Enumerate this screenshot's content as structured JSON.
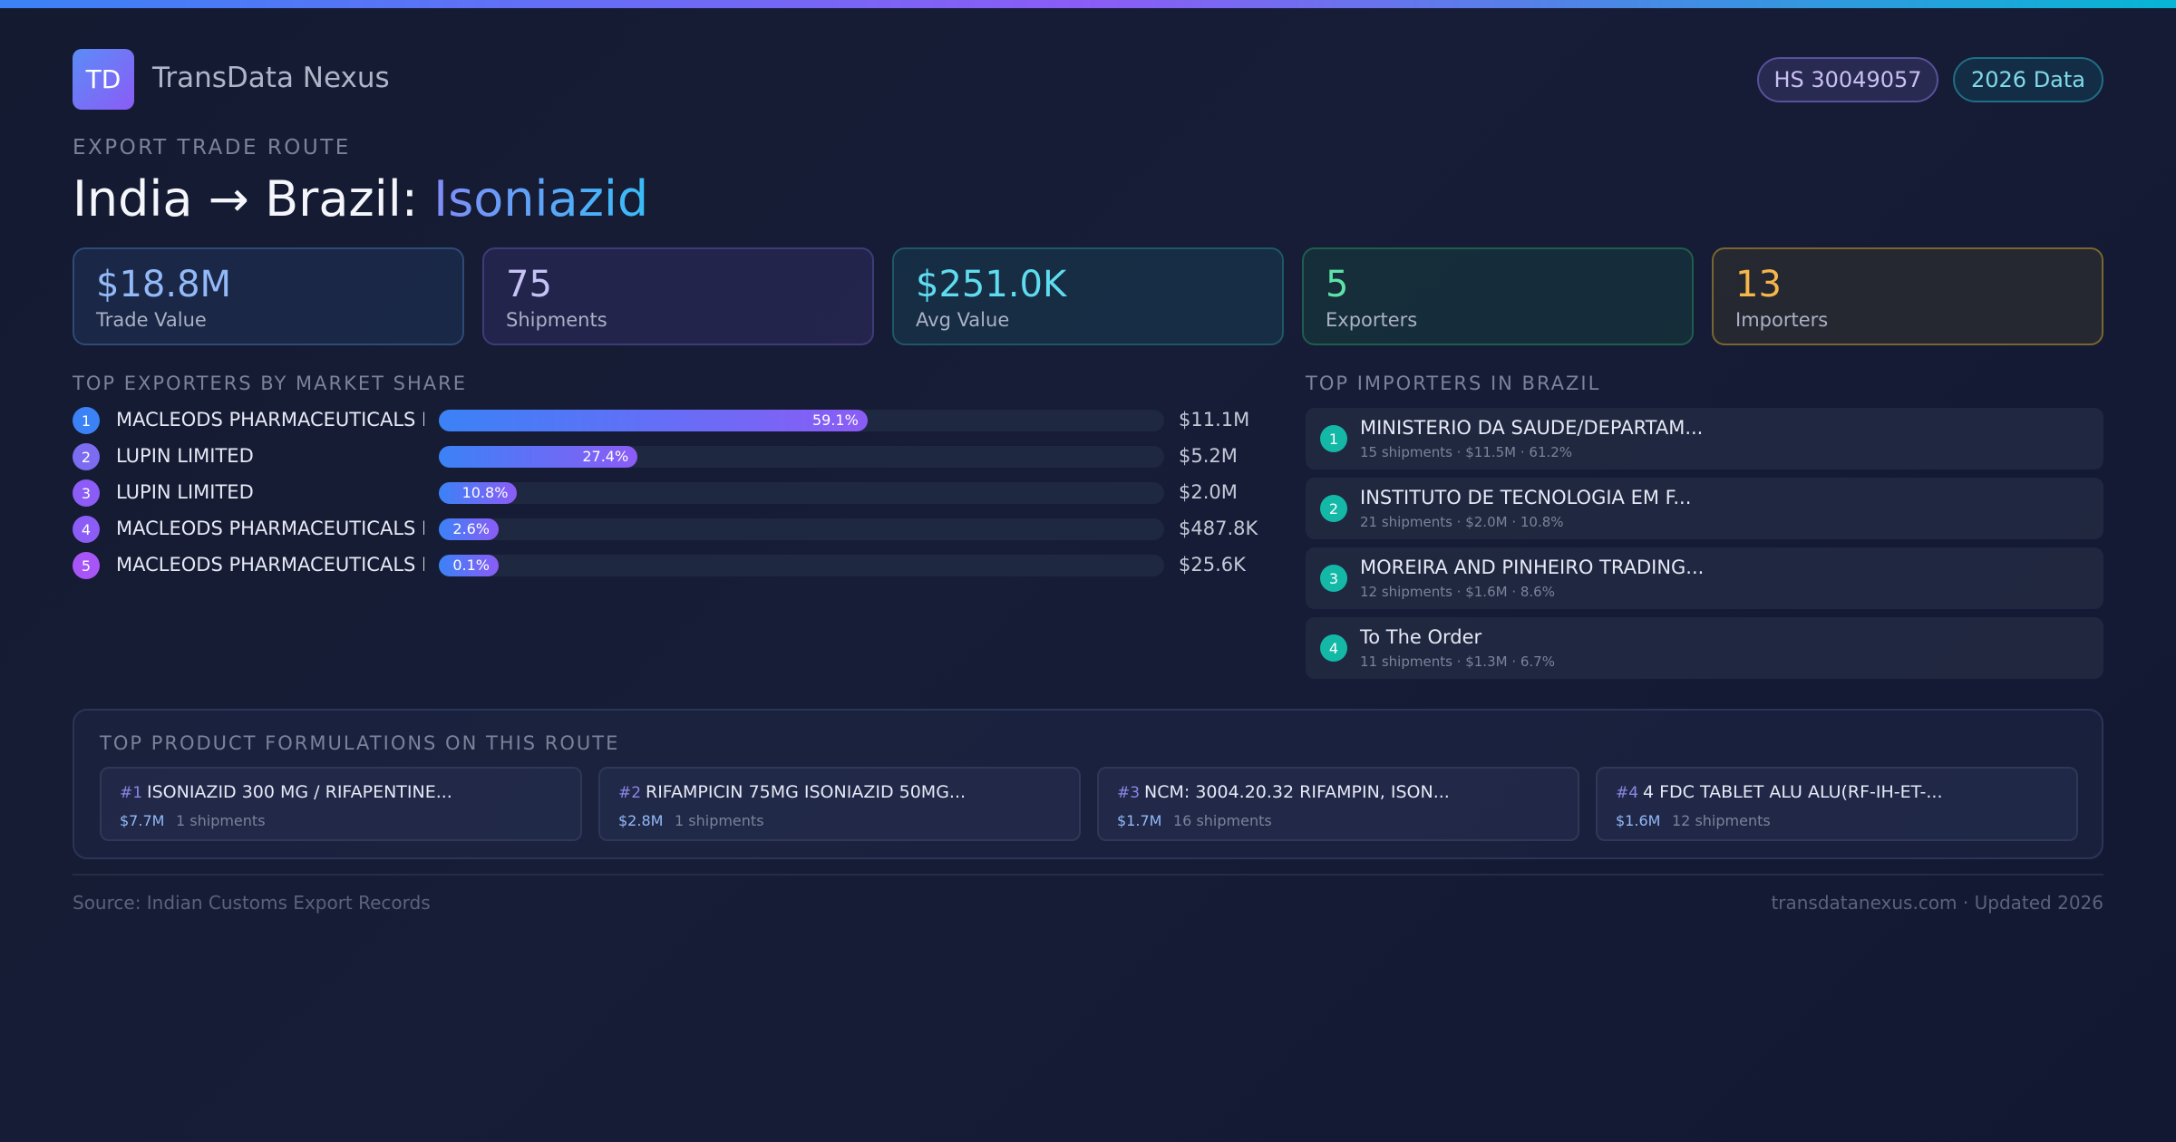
{
  "brand": {
    "logo_text": "TD",
    "name": "TransData Nexus"
  },
  "badges": {
    "hs_code": "HS 30049057",
    "year": "2026 Data"
  },
  "route": {
    "eyebrow": "EXPORT TRADE ROUTE",
    "title_prefix": "India → Brazil: ",
    "product": "Isoniazid"
  },
  "stats": [
    {
      "value": "$18.8M",
      "label": "Trade Value"
    },
    {
      "value": "75",
      "label": "Shipments"
    },
    {
      "value": "$251.0K",
      "label": "Avg Value"
    },
    {
      "value": "5",
      "label": "Exporters"
    },
    {
      "value": "13",
      "label": "Importers"
    }
  ],
  "exporters": {
    "heading": "TOP EXPORTERS BY MARKET SHARE",
    "items": [
      {
        "rank": "1",
        "name": "MACLEODS PHARMACEUTICALS LTD",
        "share": 59.1,
        "share_label": "59.1%",
        "value": "$11.1M",
        "color": "#3b82f6"
      },
      {
        "rank": "2",
        "name": "LUPIN LIMITED",
        "share": 27.4,
        "share_label": "27.4%",
        "value": "$5.2M",
        "color": "#7c6cf0"
      },
      {
        "rank": "3",
        "name": "LUPIN LIMITED",
        "share": 10.8,
        "share_label": "10.8%",
        "value": "$2.0M",
        "color": "#8b5cf6"
      },
      {
        "rank": "4",
        "name": "MACLEODS PHARMACEUTICALS L...",
        "share": 2.6,
        "share_label": "2.6%",
        "value": "$487.8K",
        "color": "#8b5cf6"
      },
      {
        "rank": "5",
        "name": "MACLEODS PHARMACEUTICALS L...",
        "share": 0.1,
        "share_label": "0.1%",
        "value": "$25.6K",
        "color": "#a855f7"
      }
    ]
  },
  "importers": {
    "heading": "TOP IMPORTERS IN BRAZIL",
    "items": [
      {
        "rank": "1",
        "name": "MINISTERIO DA SAUDE/DEPARTAM...",
        "meta": "15 shipments · $11.5M · 61.2%"
      },
      {
        "rank": "2",
        "name": "INSTITUTO DE TECNOLOGIA EM F...",
        "meta": "21 shipments · $2.0M · 10.8%"
      },
      {
        "rank": "3",
        "name": "MOREIRA AND PINHEIRO TRADING...",
        "meta": "12 shipments · $1.6M · 8.6%"
      },
      {
        "rank": "4",
        "name": "To The Order",
        "meta": "11 shipments · $1.3M · 6.7%"
      }
    ]
  },
  "formulations": {
    "heading": "TOP PRODUCT FORMULATIONS ON THIS ROUTE",
    "items": [
      {
        "rank": "#1",
        "name": "ISONIAZID 300 MG / RIFAPENTINE...",
        "value": "$7.7M",
        "shipments": "1 shipments"
      },
      {
        "rank": "#2",
        "name": "RIFAMPICIN 75MG ISONIAZID 50MG...",
        "value": "$2.8M",
        "shipments": "1 shipments"
      },
      {
        "rank": "#3",
        "name": "NCM: 3004.20.32 RIFAMPIN, ISON...",
        "value": "$1.7M",
        "shipments": "16 shipments"
      },
      {
        "rank": "#4",
        "name": "4 FDC TABLET ALU ALU(RF-IH-ET-...",
        "value": "$1.6M",
        "shipments": "12 shipments"
      }
    ]
  },
  "footer": {
    "source": "Source: Indian Customs Export Records",
    "site": "transdatanexus.com · Updated 2026"
  }
}
